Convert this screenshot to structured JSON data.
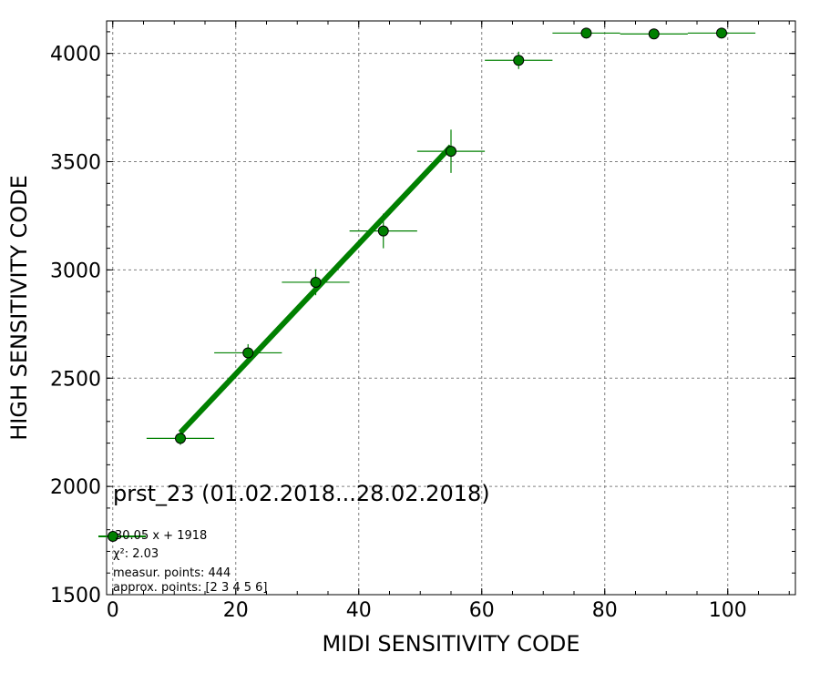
{
  "chart_data": {
    "type": "scatter",
    "xlabel": "MIDI SENSITIVITY CODE",
    "ylabel": "HIGH SENSITIVITY CODE",
    "xlim": [
      -1,
      111
    ],
    "ylim": [
      1500,
      4150
    ],
    "xticks": [
      0,
      20,
      40,
      60,
      80,
      100
    ],
    "yticks": [
      1500,
      2000,
      2500,
      3000,
      3500,
      4000
    ],
    "x_minor_step": 5,
    "y_minor_step": 100,
    "grid": true,
    "colors": {
      "marker": "#008000",
      "line": "#008000",
      "grid": "#808080"
    },
    "points": [
      {
        "x": 11,
        "y": 2222,
        "xerr": 5.5,
        "yerr": 30
      },
      {
        "x": 22,
        "y": 2617,
        "xerr": 5.5,
        "yerr": 40
      },
      {
        "x": 33,
        "y": 2943,
        "xerr": 5.5,
        "yerr": 60
      },
      {
        "x": 44,
        "y": 3180,
        "xerr": 5.5,
        "yerr": 80
      },
      {
        "x": 55,
        "y": 3548,
        "xerr": 5.5,
        "yerr": 100
      },
      {
        "x": 66,
        "y": 3968,
        "xerr": 5.5,
        "yerr": 40
      },
      {
        "x": 77,
        "y": 4094,
        "xerr": 5.5,
        "yerr": 5
      },
      {
        "x": 88,
        "y": 4090,
        "xerr": 5.5,
        "yerr": 5
      },
      {
        "x": 99,
        "y": 4094,
        "xerr": 5.5,
        "yerr": 5
      }
    ],
    "fit": {
      "slope": 30.05,
      "intercept": 1918,
      "x_range": [
        11,
        55
      ]
    },
    "annotation": {
      "title": "prst_23 (01.02.2018...28.02.2018)",
      "legend_label": "30.05 x + 1918",
      "chi2_label": "χ²: 2.03",
      "measur_points": "measur. points: 444",
      "approx_points": "approx. points: [2 3 4 5 6]"
    }
  }
}
